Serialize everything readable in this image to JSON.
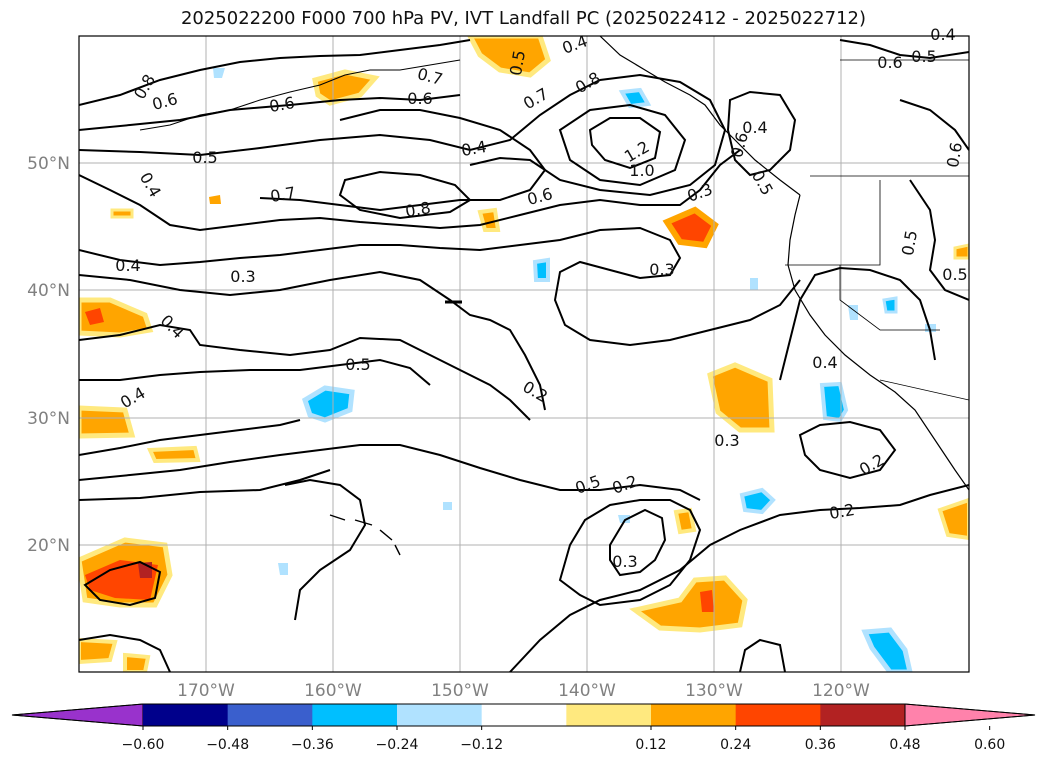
{
  "title": "2025022200 F000 700 hPa PV, IVT Landfall PC (2025022412 - 2025022712)",
  "lat_labels": [
    "50°N",
    "40°N",
    "30°N",
    "20°N"
  ],
  "lon_labels": [
    "170°W",
    "160°W",
    "150°W",
    "140°W",
    "130°W",
    "120°W"
  ],
  "contour_labels": [
    "0.8",
    "0.6",
    "0.6",
    "0.7",
    "0.6",
    "0.4",
    "0.5",
    "0.4",
    "0.7",
    "0.8",
    "0.4",
    "0.5",
    "0.8",
    "0.7",
    "1.2",
    "1.0",
    "0.4",
    "0.6",
    "0.6",
    "0.4",
    "0.5",
    "0.6",
    "0.5",
    "0.4",
    "0.3",
    "0.5",
    "0.3",
    "0.6",
    "0.5",
    "0.3",
    "0.4",
    "0.5",
    "0.2",
    "0.4",
    "0.3",
    "0.4",
    "0.5",
    "0.2",
    "0.3",
    "0.2",
    "0.2"
  ],
  "colorbar": {
    "ticks": [
      "−0.60",
      "−0.48",
      "−0.36",
      "−0.24",
      "−0.12",
      "0.12",
      "0.24",
      "0.36",
      "0.48",
      "0.60"
    ],
    "colors": [
      "#9932cc",
      "#00008b",
      "#3a5fcd",
      "#00bfff",
      "#b0e2ff",
      "#ffffff",
      "#ffe97f",
      "#ffa500",
      "#ff4500",
      "#b22222",
      "#ff82ab"
    ]
  }
}
